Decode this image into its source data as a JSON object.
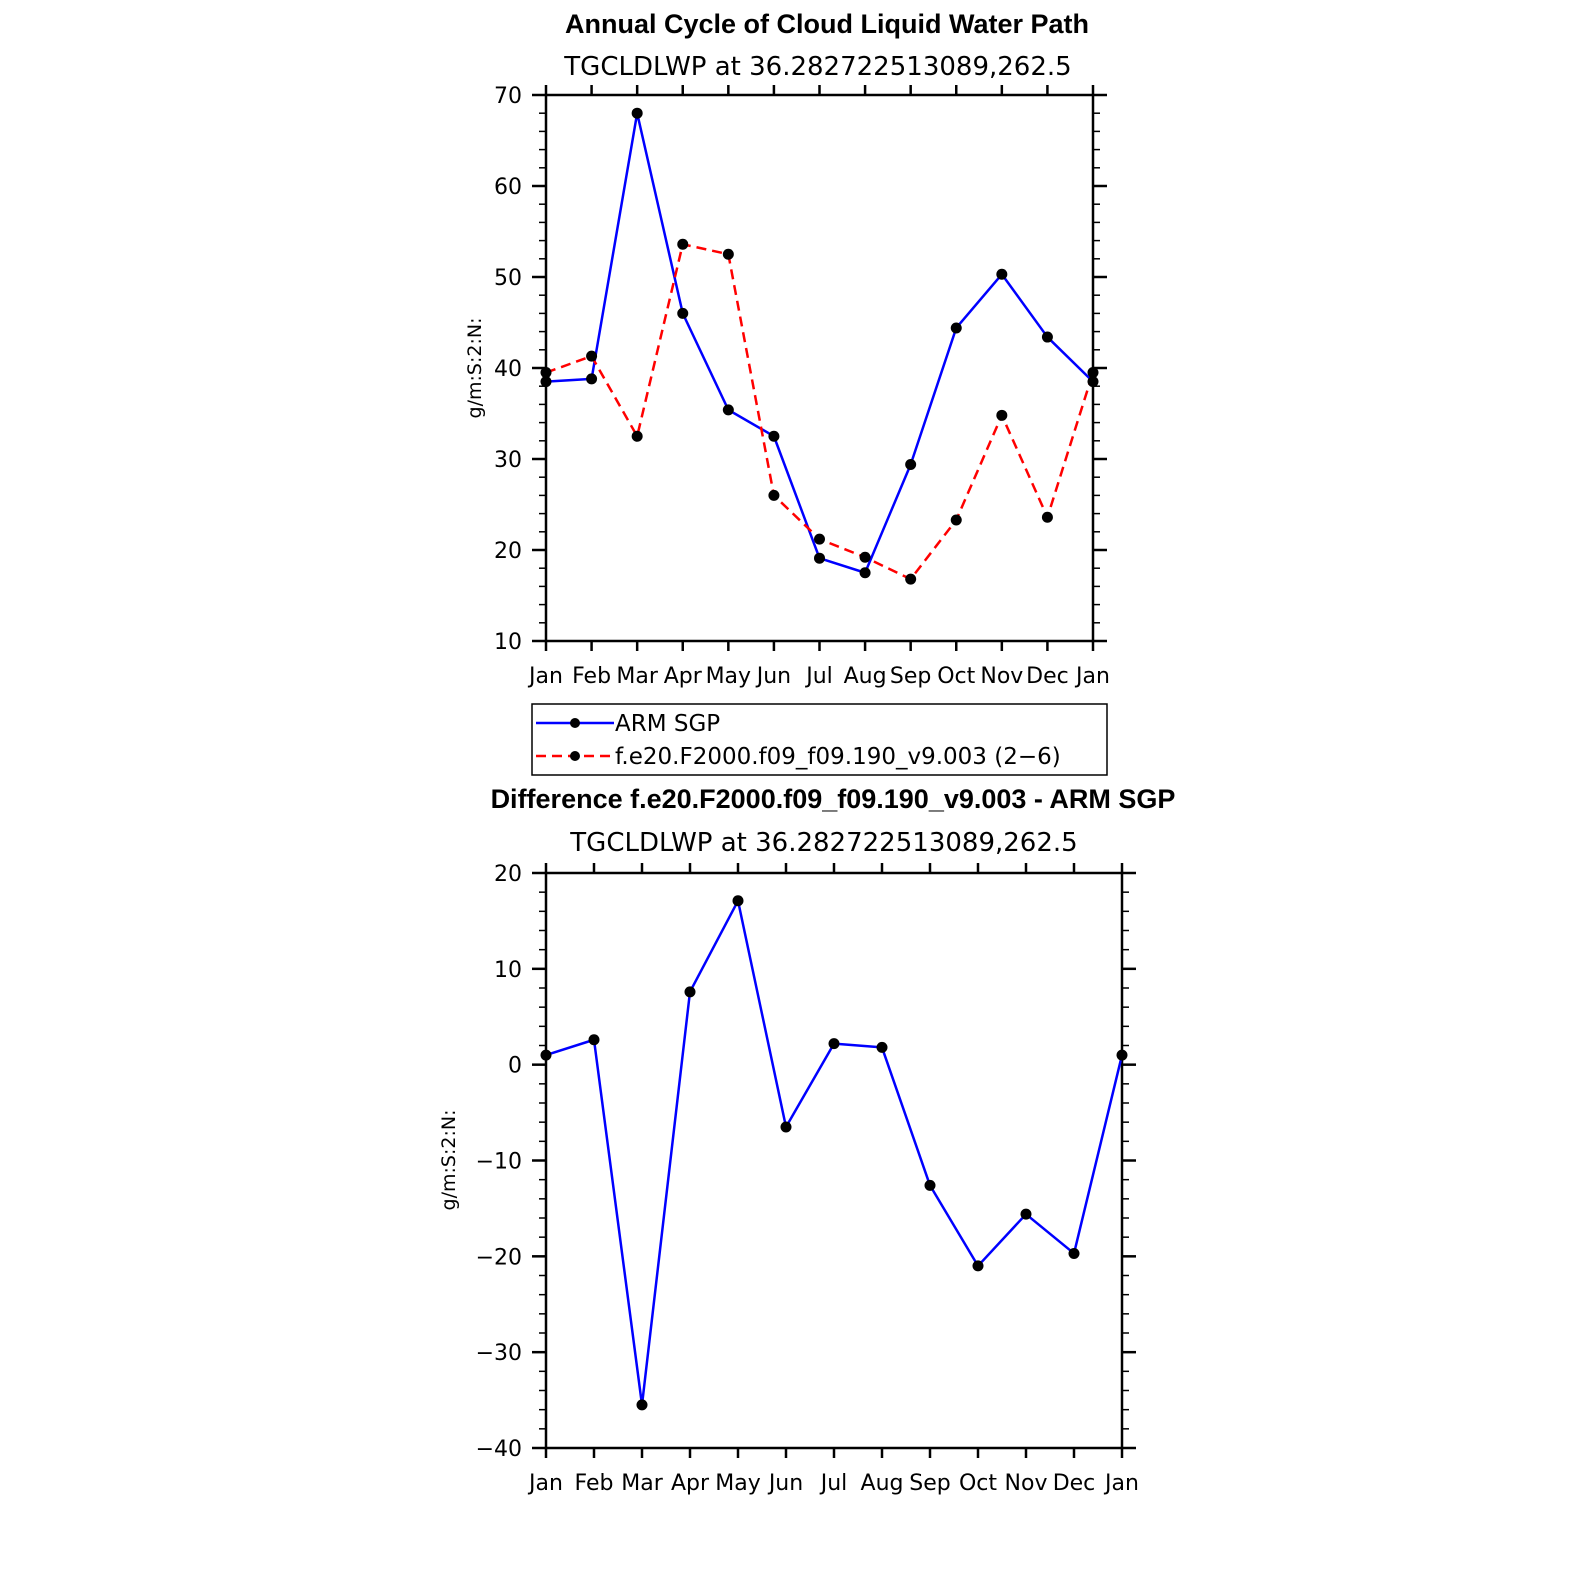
{
  "chart_data": [
    {
      "type": "line",
      "title": "Annual Cycle of Cloud Liquid Water Path",
      "subtitle": "TGCLDLWP  at  36.282722513089,262.5",
      "xlabel": "",
      "ylabel": "g/m:S:2:N:",
      "categories": [
        "Jan",
        "Feb",
        "Mar",
        "Apr",
        "May",
        "Jun",
        "Jul",
        "Aug",
        "Sep",
        "Oct",
        "Nov",
        "Dec",
        "Jan"
      ],
      "ylim": [
        10,
        70
      ],
      "yticks": [
        "10",
        "20",
        "30",
        "40",
        "50",
        "60",
        "70"
      ],
      "grid": false,
      "legend_position": "bottom",
      "series": [
        {
          "name": "ARM SGP",
          "color": "#0000ff",
          "dash": "solid",
          "values": [
            38.5,
            38.8,
            68.0,
            46.0,
            35.4,
            32.5,
            19.1,
            17.5,
            29.4,
            44.4,
            50.3,
            43.4,
            38.5
          ]
        },
        {
          "name": "f.e20.F2000.f09_f09.190_v9.003 (2−6)",
          "color": "#ff0000",
          "dash": "dashed",
          "values": [
            39.5,
            41.3,
            32.5,
            53.6,
            52.5,
            26.0,
            21.2,
            19.2,
            16.8,
            23.3,
            34.8,
            23.6,
            39.5
          ]
        }
      ]
    },
    {
      "type": "line",
      "title": "Difference f.e20.F2000.f09_f09.190_v9.003 - ARM SGP",
      "subtitle": "TGCLDLWP  at  36.282722513089,262.5",
      "xlabel": "",
      "ylabel": "g/m:S:2:N:",
      "categories": [
        "Jan",
        "Feb",
        "Mar",
        "Apr",
        "May",
        "Jun",
        "Jul",
        "Aug",
        "Sep",
        "Oct",
        "Nov",
        "Dec",
        "Jan"
      ],
      "ylim": [
        -40,
        20
      ],
      "yticks": [
        "−40",
        "−30",
        "−20",
        "−10",
        "0",
        "10",
        "20"
      ],
      "grid": false,
      "series": [
        {
          "color": "#0000ff",
          "dash": "solid",
          "values": [
            1.0,
            2.6,
            -35.5,
            7.6,
            17.1,
            -6.5,
            2.2,
            1.8,
            -12.6,
            -21.0,
            -15.6,
            -19.7,
            1.0
          ]
        }
      ]
    }
  ]
}
